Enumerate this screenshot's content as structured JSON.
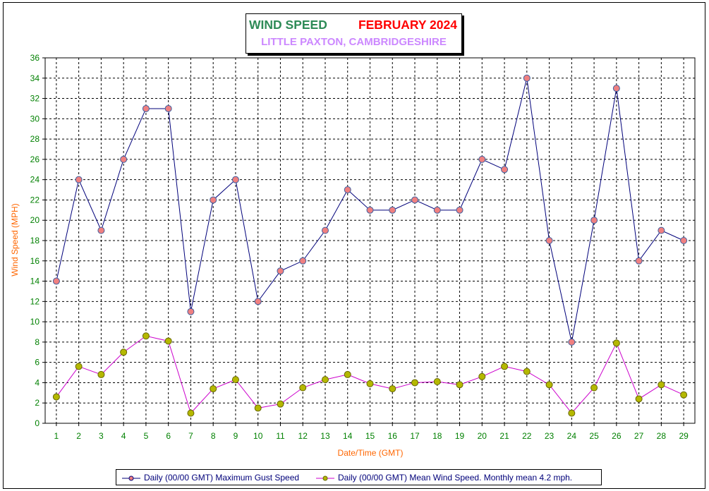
{
  "title": {
    "left": "WIND SPEED",
    "right": "FEBRUARY 2024",
    "subtitle": "LITTLE PAXTON, CAMBRIDGESHIRE"
  },
  "colors": {
    "gust_line": "#00007a",
    "mean_line": "#cc00cc",
    "gust_marker": "#f08080",
    "mean_marker": "#b5b800",
    "axis_text": "#008000",
    "axis_label": "#ff6600",
    "title_green": "#2e8b57",
    "title_red": "#ff0000",
    "subtitle": "#cc88ff"
  },
  "chart_data": {
    "type": "line",
    "xlabel": "Date/Time (GMT)",
    "ylabel": "Wind Speed (MPH)",
    "ylim": [
      0,
      36
    ],
    "yticks": [
      0,
      2,
      4,
      6,
      8,
      10,
      12,
      14,
      16,
      18,
      20,
      22,
      24,
      26,
      28,
      30,
      32,
      34,
      36
    ],
    "x": [
      1,
      2,
      3,
      4,
      5,
      6,
      7,
      8,
      9,
      10,
      11,
      12,
      13,
      14,
      15,
      16,
      17,
      18,
      19,
      20,
      21,
      22,
      23,
      24,
      25,
      26,
      27,
      28,
      29
    ],
    "grid": true,
    "legend_position": "bottom",
    "series": [
      {
        "name": "Daily (00/00 GMT) Maximum Gust Speed",
        "values": [
          14,
          24,
          19,
          26,
          31,
          31,
          11,
          22,
          24,
          12,
          15,
          16,
          19,
          23,
          21,
          21,
          22,
          21,
          21,
          26,
          25,
          34,
          18,
          8,
          20,
          33,
          16,
          19,
          18
        ]
      },
      {
        "name": "Daily (00/00 GMT) Mean Wind Speed. Monthly mean 4.2 mph.",
        "values": [
          2.6,
          5.6,
          4.8,
          7.0,
          8.6,
          8.1,
          1.0,
          3.4,
          4.3,
          1.5,
          1.9,
          3.5,
          4.3,
          4.8,
          3.9,
          3.4,
          4.0,
          4.1,
          3.8,
          4.6,
          5.6,
          5.1,
          3.8,
          1.0,
          3.5,
          7.9,
          2.4,
          3.8,
          2.8
        ]
      }
    ]
  }
}
